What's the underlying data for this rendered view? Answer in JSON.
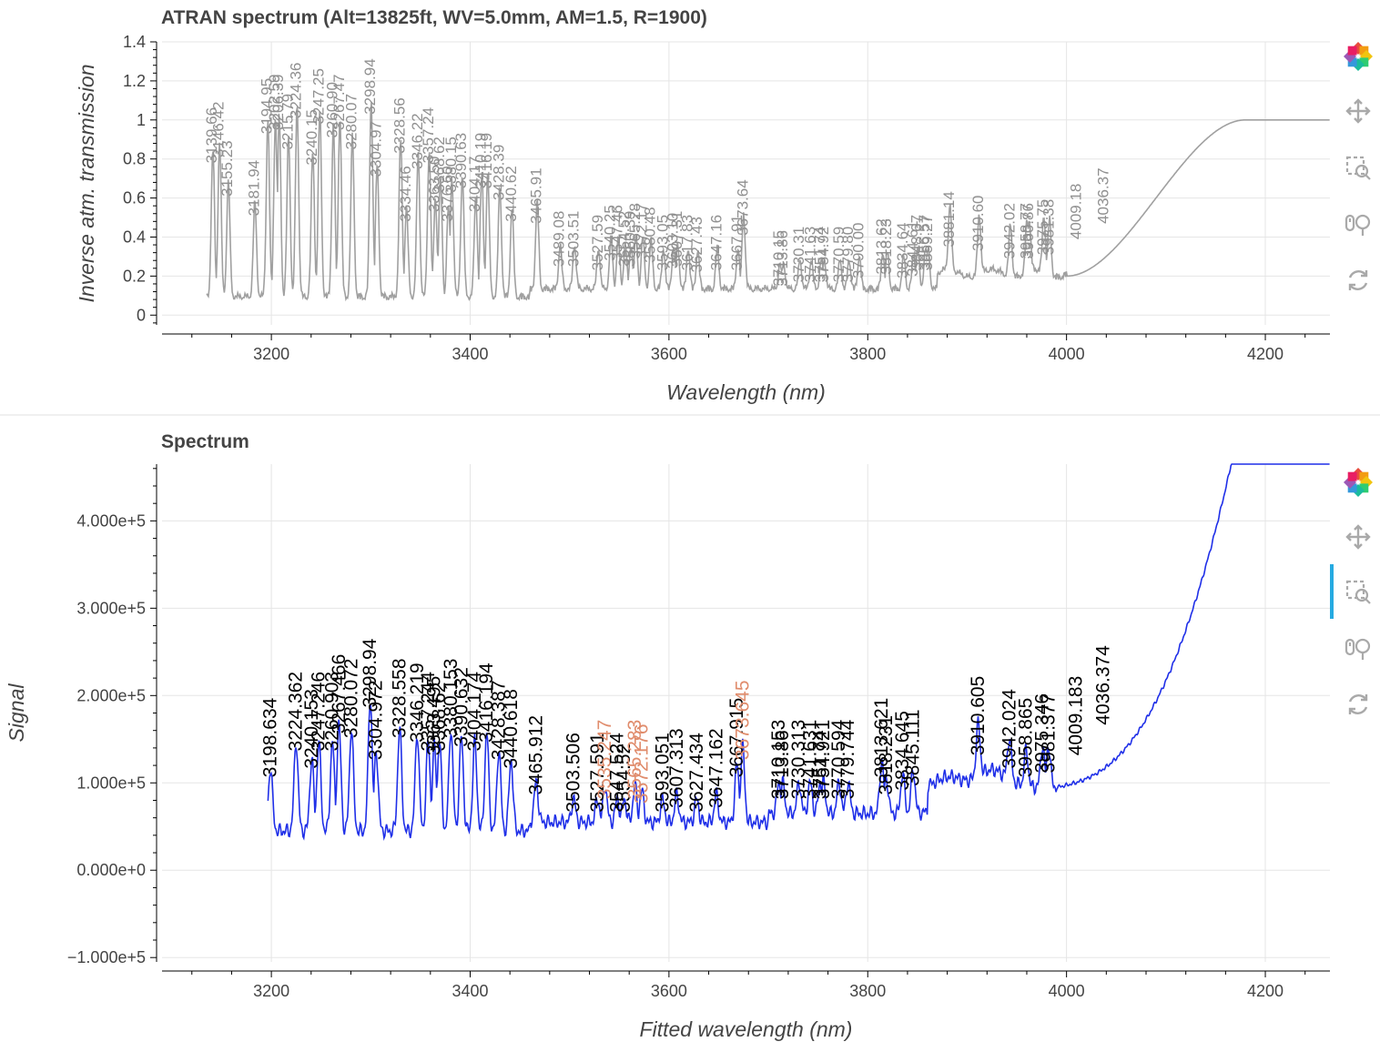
{
  "toolbar": {
    "tools": [
      {
        "name": "bokeh-logo",
        "icon": "bokeh-logo-icon"
      },
      {
        "name": "pan",
        "icon": "pan-icon"
      },
      {
        "name": "box-zoom",
        "icon": "box-zoom-icon"
      },
      {
        "name": "wheel-zoom",
        "icon": "wheel-zoom-icon"
      },
      {
        "name": "reset",
        "icon": "reset-icon"
      }
    ],
    "active_color": "#26aae1"
  },
  "chart_data": [
    {
      "type": "line",
      "title": "ATRAN spectrum (Alt=13825ft, WV=5.0mm, AM=1.5, R=1900)",
      "xlabel": "Wavelength (nm)",
      "ylabel": "Inverse atm. transmission",
      "xlim": [
        3090,
        4265
      ],
      "ylim": [
        -0.05,
        1.4
      ],
      "xticks": [
        3200,
        3400,
        3600,
        3800,
        4000,
        4200
      ],
      "xtick_labels": [
        "3200",
        "3400",
        "3600",
        "3800",
        "4000",
        "4200"
      ],
      "yticks": [
        0,
        0.2,
        0.4,
        0.6,
        0.8,
        1,
        1.2,
        1.4
      ],
      "ytick_labels": [
        "0",
        "0.2",
        "0.4",
        "0.6",
        "0.8",
        "1",
        "1.2",
        "1.4"
      ],
      "line_color": "#a0a0a0",
      "label_color": "#909090",
      "line_labels": [
        {
          "x": 3139.66,
          "y": 0.75,
          "text": "3139.66"
        },
        {
          "x": 3146.42,
          "y": 0.78,
          "text": "3146.42"
        },
        {
          "x": 3155.23,
          "y": 0.58,
          "text": "3155.23"
        },
        {
          "x": 3181.94,
          "y": 0.48,
          "text": "3181.94"
        },
        {
          "x": 3194.95,
          "y": 0.9,
          "text": "3194.95"
        },
        {
          "x": 3202.59,
          "y": 0.92,
          "text": "3202.59"
        },
        {
          "x": 3206.39,
          "y": 0.92,
          "text": "3206.39"
        },
        {
          "x": 3215.79,
          "y": 0.82,
          "text": "3215.79"
        },
        {
          "x": 3224.36,
          "y": 0.98,
          "text": "3224.36"
        },
        {
          "x": 3240.15,
          "y": 0.74,
          "text": "3240.15"
        },
        {
          "x": 3247.25,
          "y": 0.95,
          "text": "3247.25"
        },
        {
          "x": 3260.9,
          "y": 0.88,
          "text": "3260.90"
        },
        {
          "x": 3267.47,
          "y": 0.92,
          "text": "3267.47"
        },
        {
          "x": 3280.07,
          "y": 0.82,
          "text": "3280.07"
        },
        {
          "x": 3298.94,
          "y": 1.0,
          "text": "3298.94"
        },
        {
          "x": 3304.97,
          "y": 0.68,
          "text": "3304.97"
        },
        {
          "x": 3328.56,
          "y": 0.8,
          "text": "3328.56"
        },
        {
          "x": 3334.46,
          "y": 0.45,
          "text": "3334.46"
        },
        {
          "x": 3346.22,
          "y": 0.72,
          "text": "3346.22"
        },
        {
          "x": 3357.24,
          "y": 0.75,
          "text": "3357.24"
        },
        {
          "x": 3363.5,
          "y": 0.5,
          "text": "3363.50"
        },
        {
          "x": 3368.62,
          "y": 0.6,
          "text": "3368.62"
        },
        {
          "x": 3376.6,
          "y": 0.45,
          "text": "3376.60"
        },
        {
          "x": 3380.15,
          "y": 0.6,
          "text": "3380.15"
        },
        {
          "x": 3390.63,
          "y": 0.62,
          "text": "3390.63"
        },
        {
          "x": 3404.17,
          "y": 0.5,
          "text": "3404.17"
        },
        {
          "x": 3410.19,
          "y": 0.62,
          "text": "3410.19"
        },
        {
          "x": 3416.19,
          "y": 0.62,
          "text": "3416.19"
        },
        {
          "x": 3428.39,
          "y": 0.56,
          "text": "3428.39"
        },
        {
          "x": 3440.62,
          "y": 0.45,
          "text": "3440.62"
        },
        {
          "x": 3465.91,
          "y": 0.44,
          "text": "3465.91"
        },
        {
          "x": 3489.08,
          "y": 0.22,
          "text": "3489.08"
        },
        {
          "x": 3503.51,
          "y": 0.22,
          "text": "3503.51"
        },
        {
          "x": 3527.59,
          "y": 0.2,
          "text": "3527.59"
        },
        {
          "x": 3540.25,
          "y": 0.25,
          "text": "3540.25"
        },
        {
          "x": 3547.46,
          "y": 0.25,
          "text": "3547.46"
        },
        {
          "x": 3554.52,
          "y": 0.22,
          "text": "3554.52"
        },
        {
          "x": 3560.39,
          "y": 0.22,
          "text": "3560.39"
        },
        {
          "x": 3565.28,
          "y": 0.26,
          "text": "3565.28"
        },
        {
          "x": 3572.17,
          "y": 0.26,
          "text": "3572.17"
        },
        {
          "x": 3580.48,
          "y": 0.24,
          "text": "3580.48"
        },
        {
          "x": 3593.05,
          "y": 0.2,
          "text": "3593.05"
        },
        {
          "x": 3603.1,
          "y": 0.21,
          "text": "3603.10"
        },
        {
          "x": 3607.31,
          "y": 0.22,
          "text": "3607.31"
        },
        {
          "x": 3617.83,
          "y": 0.2,
          "text": "3617.83"
        },
        {
          "x": 3627.43,
          "y": 0.19,
          "text": "3627.43"
        },
        {
          "x": 3647.16,
          "y": 0.2,
          "text": "3647.16"
        },
        {
          "x": 3667.91,
          "y": 0.2,
          "text": "3667.91"
        },
        {
          "x": 3673.64,
          "y": 0.38,
          "text": "3673.64"
        },
        {
          "x": 3710.15,
          "y": 0.12,
          "text": "3710.15"
        },
        {
          "x": 3713.86,
          "y": 0.12,
          "text": "3713.86"
        },
        {
          "x": 3730.31,
          "y": 0.14,
          "text": "3730.31"
        },
        {
          "x": 3741.63,
          "y": 0.14,
          "text": "3741.63"
        },
        {
          "x": 3751.74,
          "y": 0.14,
          "text": "3751.74"
        },
        {
          "x": 3754.92,
          "y": 0.14,
          "text": "3754.92"
        },
        {
          "x": 3770.59,
          "y": 0.14,
          "text": "3770.59"
        },
        {
          "x": 3779.8,
          "y": 0.14,
          "text": "3779.80"
        },
        {
          "x": 3790.0,
          "y": 0.16,
          "text": "3790.00"
        },
        {
          "x": 3813.62,
          "y": 0.18,
          "text": "3813.62"
        },
        {
          "x": 3818.23,
          "y": 0.18,
          "text": "3818.23"
        },
        {
          "x": 3834.64,
          "y": 0.16,
          "text": "3834.64"
        },
        {
          "x": 3844.61,
          "y": 0.17,
          "text": "3844.61"
        },
        {
          "x": 3848.67,
          "y": 0.2,
          "text": "3848.67"
        },
        {
          "x": 3856.57,
          "y": 0.2,
          "text": "3856.57"
        },
        {
          "x": 3859.27,
          "y": 0.2,
          "text": "3859.27"
        },
        {
          "x": 3881.14,
          "y": 0.32,
          "text": "3881.14"
        },
        {
          "x": 3910.6,
          "y": 0.3,
          "text": "3910.60"
        },
        {
          "x": 3942.02,
          "y": 0.26,
          "text": "3942.02"
        },
        {
          "x": 3958.77,
          "y": 0.26,
          "text": "3958.77"
        },
        {
          "x": 3960.86,
          "y": 0.26,
          "text": "3960.86"
        },
        {
          "x": 3975.75,
          "y": 0.28,
          "text": "3975.75"
        },
        {
          "x": 3981.38,
          "y": 0.28,
          "text": "3981.38"
        },
        {
          "x": 4009.18,
          "y": 0.36,
          "text": "4009.18"
        },
        {
          "x": 4036.37,
          "y": 0.44,
          "text": "4036.37"
        }
      ]
    },
    {
      "type": "line",
      "title": "Spectrum",
      "xlabel": "Fitted wavelength (nm)",
      "ylabel": "Signal",
      "xlim": [
        3090,
        4265
      ],
      "ylim": [
        -105000,
        465000
      ],
      "xticks": [
        3200,
        3400,
        3600,
        3800,
        4000,
        4200
      ],
      "xtick_labels": [
        "3200",
        "3400",
        "3600",
        "3800",
        "4000",
        "4200"
      ],
      "yticks": [
        -100000,
        0,
        100000,
        200000,
        300000,
        400000
      ],
      "ytick_labels": [
        "−1.000e+5",
        "0.000e+0",
        "1.000e+5",
        "2.000e+5",
        "3.000e+5",
        "4.000e+5"
      ],
      "line_color": "#1f2fe8",
      "label_color": "#000000",
      "highlight_color": "#e08c6c",
      "line_labels": [
        {
          "x": 3198.634,
          "y": 100000,
          "text": "3198.634"
        },
        {
          "x": 3224.362,
          "y": 130000,
          "text": "3224.362"
        },
        {
          "x": 3240.153,
          "y": 110000,
          "text": "3240.153"
        },
        {
          "x": 3247.246,
          "y": 130000,
          "text": "3247.246"
        },
        {
          "x": 3260.903,
          "y": 130000,
          "text": "3260.903"
        },
        {
          "x": 3267.466,
          "y": 150000,
          "text": "3267.466"
        },
        {
          "x": 3280.072,
          "y": 145000,
          "text": "3280.072"
        },
        {
          "x": 3298.94,
          "y": 180000,
          "text": "3298.94"
        },
        {
          "x": 3304.972,
          "y": 120000,
          "text": "3304.972"
        },
        {
          "x": 3328.558,
          "y": 145000,
          "text": "3328.558"
        },
        {
          "x": 3346.219,
          "y": 140000,
          "text": "3346.219"
        },
        {
          "x": 3357.244,
          "y": 130000,
          "text": "3357.244"
        },
        {
          "x": 3363.495,
          "y": 125000,
          "text": "3363.495"
        },
        {
          "x": 3368.62,
          "y": 130000,
          "text": "3368.62"
        },
        {
          "x": 3380.153,
          "y": 145000,
          "text": "3380.153"
        },
        {
          "x": 3390.632,
          "y": 135000,
          "text": "3390.632"
        },
        {
          "x": 3404.174,
          "y": 130000,
          "text": "3404.174"
        },
        {
          "x": 3416.194,
          "y": 140000,
          "text": "3416.194"
        },
        {
          "x": 3428.387,
          "y": 120000,
          "text": "3428.387"
        },
        {
          "x": 3440.618,
          "y": 110000,
          "text": "3440.618"
        },
        {
          "x": 3465.912,
          "y": 80000,
          "text": "3465.912"
        },
        {
          "x": 3503.506,
          "y": 60000,
          "text": "3503.506"
        },
        {
          "x": 3527.591,
          "y": 60000,
          "text": "3527.591"
        },
        {
          "x": 3535.247,
          "y": 75000,
          "text": "3535.247",
          "highlight": true
        },
        {
          "x": 3547.524,
          "y": 60000,
          "text": "3547.524"
        },
        {
          "x": 3554.52,
          "y": 60000,
          "text": "3554.52"
        },
        {
          "x": 3565.283,
          "y": 75000,
          "text": "3565.283",
          "highlight": true
        },
        {
          "x": 3572.176,
          "y": 70000,
          "text": "3572.176",
          "highlight": true
        },
        {
          "x": 3593.051,
          "y": 60000,
          "text": "3593.051"
        },
        {
          "x": 3607.313,
          "y": 65000,
          "text": "3607.313"
        },
        {
          "x": 3627.434,
          "y": 60000,
          "text": "3627.434"
        },
        {
          "x": 3647.162,
          "y": 65000,
          "text": "3647.162"
        },
        {
          "x": 3667.915,
          "y": 100000,
          "text": "3667.915"
        },
        {
          "x": 3673.645,
          "y": 120000,
          "text": "3673.645",
          "highlight": true
        },
        {
          "x": 3710.153,
          "y": 75000,
          "text": "3710.153"
        },
        {
          "x": 3713.86,
          "y": 75000,
          "text": "3713.86"
        },
        {
          "x": 3730.313,
          "y": 75000,
          "text": "3730.313"
        },
        {
          "x": 3741.631,
          "y": 75000,
          "text": "3741.631"
        },
        {
          "x": 3751.74,
          "y": 75000,
          "text": "3751.74"
        },
        {
          "x": 3754.921,
          "y": 75000,
          "text": "3754.921"
        },
        {
          "x": 3770.594,
          "y": 75000,
          "text": "3770.594"
        },
        {
          "x": 3779.744,
          "y": 75000,
          "text": "3779.744"
        },
        {
          "x": 3813.621,
          "y": 100000,
          "text": "3813.621"
        },
        {
          "x": 3818.231,
          "y": 80000,
          "text": "3818.231"
        },
        {
          "x": 3834.645,
          "y": 85000,
          "text": "3834.645"
        },
        {
          "x": 3845.111,
          "y": 90000,
          "text": "3845.111"
        },
        {
          "x": 3910.605,
          "y": 125000,
          "text": "3910.605"
        },
        {
          "x": 3942.024,
          "y": 110000,
          "text": "3942.024"
        },
        {
          "x": 3958.865,
          "y": 100000,
          "text": "3958.865"
        },
        {
          "x": 3975.346,
          "y": 105000,
          "text": "3975.346"
        },
        {
          "x": 3981.377,
          "y": 105000,
          "text": "3981.377"
        },
        {
          "x": 4009.183,
          "y": 125000,
          "text": "4009.183"
        },
        {
          "x": 4036.374,
          "y": 160000,
          "text": "4036.374"
        }
      ]
    }
  ]
}
